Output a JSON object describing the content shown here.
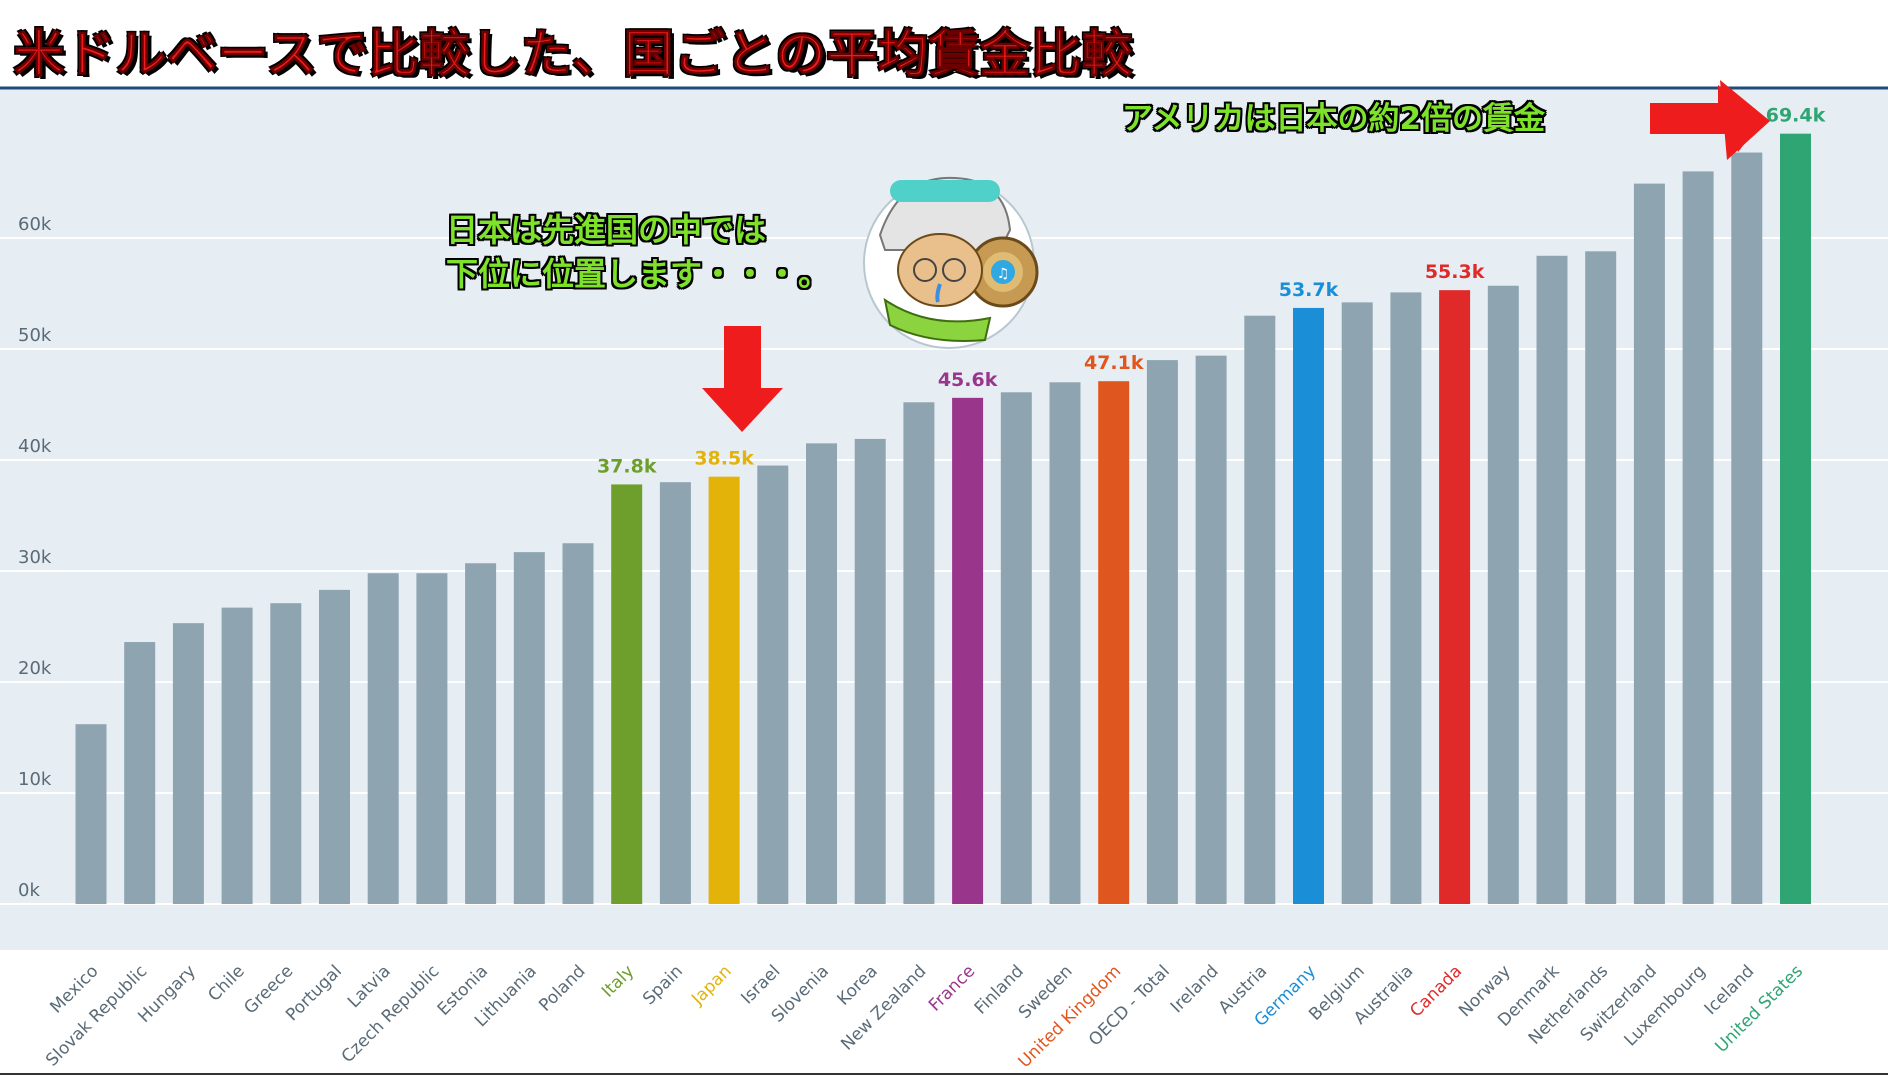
{
  "header": {
    "title": "米ドルベースで比較した、国ごとの平均賃金比較"
  },
  "annotations": {
    "us_note": "アメリカは日本の約2倍の賃金",
    "japan_note_line1": "日本は先進国の中では",
    "japan_note_line2": "下位に位置します・・・。"
  },
  "colors": {
    "default_bar": "#8fa4b1",
    "plot_background": "#e7eef3",
    "italy": "#6e9f2d",
    "japan": "#e3b30a",
    "france": "#9a358c",
    "united_kingdom": "#e0561f",
    "germany": "#1a8fd8",
    "canada": "#e02a2a",
    "united_states": "#2ea573",
    "arrow": "#ee1c1c"
  },
  "chart_data": {
    "type": "bar",
    "ylim": [
      0,
      70000
    ],
    "yticks": [
      0,
      10000,
      20000,
      30000,
      40000,
      50000,
      60000
    ],
    "ytick_labels": [
      "0k",
      "10k",
      "20k",
      "30k",
      "40k",
      "50k",
      "60k"
    ],
    "grid": true,
    "categories": [
      "Mexico",
      "Slovak Republic",
      "Hungary",
      "Chile",
      "Greece",
      "Portugal",
      "Latvia",
      "Czech Republic",
      "Estonia",
      "Lithuania",
      "Poland",
      "Italy",
      "Spain",
      "Japan",
      "Israel",
      "Slovenia",
      "Korea",
      "New Zealand",
      "France",
      "Finland",
      "Sweden",
      "United Kingdom",
      "OECD - Total",
      "Ireland",
      "Austria",
      "Germany",
      "Belgium",
      "Australia",
      "Canada",
      "Norway",
      "Denmark",
      "Netherlands",
      "Switzerland",
      "Luxembourg",
      "Iceland",
      "United States"
    ],
    "values": [
      16200,
      23600,
      25300,
      26700,
      27100,
      28300,
      29800,
      29800,
      30700,
      31700,
      32500,
      37800,
      38000,
      38500,
      39500,
      41500,
      41900,
      45200,
      45600,
      46100,
      47000,
      47100,
      49000,
      49400,
      53000,
      53700,
      54200,
      55100,
      55300,
      55700,
      58400,
      58800,
      64900,
      66000,
      67700,
      69400
    ],
    "highlighted": [
      {
        "name": "Italy",
        "color": "#6e9f2d",
        "label": "37.8k"
      },
      {
        "name": "Japan",
        "color": "#e3b30a",
        "label": "38.5k"
      },
      {
        "name": "France",
        "color": "#9a358c",
        "label": "45.6k"
      },
      {
        "name": "United Kingdom",
        "color": "#e0561f",
        "label": "47.1k"
      },
      {
        "name": "Germany",
        "color": "#1a8fd8",
        "label": "53.7k"
      },
      {
        "name": "Canada",
        "color": "#e02a2a",
        "label": "55.3k"
      },
      {
        "name": "United States",
        "color": "#2ea573",
        "label": "69.4k"
      }
    ]
  }
}
